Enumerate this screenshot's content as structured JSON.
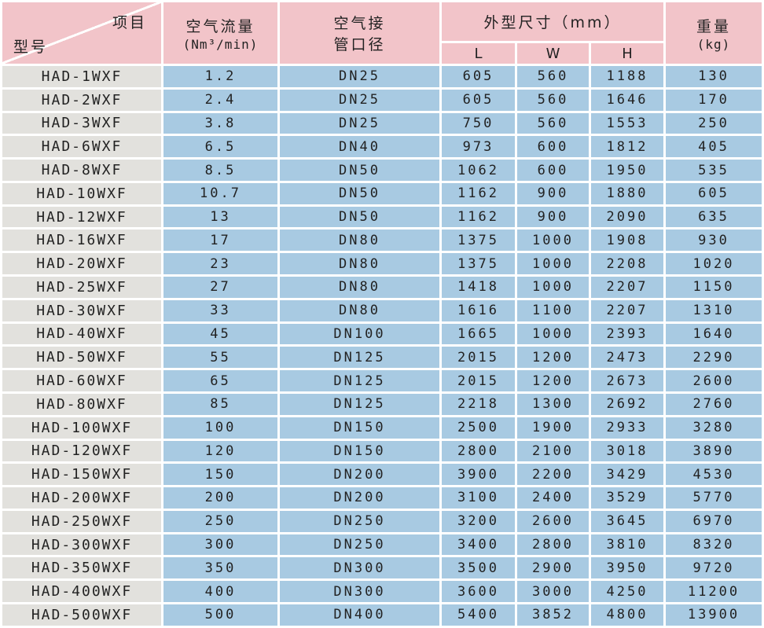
{
  "colors": {
    "header_pink": "#f2c4c9",
    "cell_blue": "#a8cae2",
    "cell_gray": "#e2e1dd",
    "grid_white": "#ffffff",
    "text_dark": "#222222"
  },
  "header": {
    "corner": {
      "top_label": "项目",
      "bottom_label": "型号"
    },
    "flow": {
      "line1": "空气流量",
      "line2": "(Nm³/min)"
    },
    "pipe": {
      "line1": "空气接",
      "line2": "管口径"
    },
    "dims": {
      "label": "外型尺寸（mm）",
      "sub": [
        "L",
        "W",
        "H"
      ]
    },
    "weight": {
      "line1": "重量",
      "line2": "(kg)"
    }
  },
  "chart_data": {
    "type": "table",
    "title": "",
    "columns": [
      "型号",
      "空气流量(Nm³/min)",
      "空气接管口径",
      "外型尺寸L(mm)",
      "外型尺寸W(mm)",
      "外型尺寸H(mm)",
      "重量(kg)"
    ],
    "rows": [
      [
        "HAD-1WXF",
        "1.2",
        "DN25",
        "605",
        "560",
        "1188",
        "130"
      ],
      [
        "HAD-2WXF",
        "2.4",
        "DN25",
        "605",
        "560",
        "1646",
        "170"
      ],
      [
        "HAD-3WXF",
        "3.8",
        "DN25",
        "750",
        "560",
        "1553",
        "250"
      ],
      [
        "HAD-6WXF",
        "6.5",
        "DN40",
        "973",
        "600",
        "1812",
        "405"
      ],
      [
        "HAD-8WXF",
        "8.5",
        "DN50",
        "1062",
        "600",
        "1950",
        "535"
      ],
      [
        "HAD-10WXF",
        "10.7",
        "DN50",
        "1162",
        "900",
        "1880",
        "605"
      ],
      [
        "HAD-12WXF",
        "13",
        "DN50",
        "1162",
        "900",
        "2090",
        "635"
      ],
      [
        "HAD-16WXF",
        "17",
        "DN80",
        "1375",
        "1000",
        "1908",
        "930"
      ],
      [
        "HAD-20WXF",
        "23",
        "DN80",
        "1375",
        "1000",
        "2208",
        "1020"
      ],
      [
        "HAD-25WXF",
        "27",
        "DN80",
        "1418",
        "1000",
        "2207",
        "1150"
      ],
      [
        "HAD-30WXF",
        "33",
        "DN80",
        "1616",
        "1100",
        "2207",
        "1310"
      ],
      [
        "HAD-40WXF",
        "45",
        "DN100",
        "1665",
        "1000",
        "2393",
        "1640"
      ],
      [
        "HAD-50WXF",
        "55",
        "DN125",
        "2015",
        "1200",
        "2473",
        "2290"
      ],
      [
        "HAD-60WXF",
        "65",
        "DN125",
        "2015",
        "1200",
        "2673",
        "2600"
      ],
      [
        "HAD-80WXF",
        "85",
        "DN125",
        "2218",
        "1300",
        "2692",
        "2760"
      ],
      [
        "HAD-100WXF",
        "100",
        "DN150",
        "2500",
        "1900",
        "2933",
        "3280"
      ],
      [
        "HAD-120WXF",
        "120",
        "DN150",
        "2800",
        "2100",
        "3018",
        "3890"
      ],
      [
        "HAD-150WXF",
        "150",
        "DN200",
        "3900",
        "2200",
        "3429",
        "4530"
      ],
      [
        "HAD-200WXF",
        "200",
        "DN200",
        "3100",
        "2400",
        "3529",
        "5770"
      ],
      [
        "HAD-250WXF",
        "250",
        "DN250",
        "3200",
        "2600",
        "3645",
        "6970"
      ],
      [
        "HAD-300WXF",
        "300",
        "DN250",
        "3400",
        "2800",
        "3810",
        "8320"
      ],
      [
        "HAD-350WXF",
        "350",
        "DN300",
        "3500",
        "2900",
        "3950",
        "9720"
      ],
      [
        "HAD-400WXF",
        "400",
        "DN300",
        "3600",
        "3000",
        "4250",
        "11200"
      ],
      [
        "HAD-500WXF",
        "500",
        "DN400",
        "5400",
        "3852",
        "4800",
        "13900"
      ]
    ]
  }
}
